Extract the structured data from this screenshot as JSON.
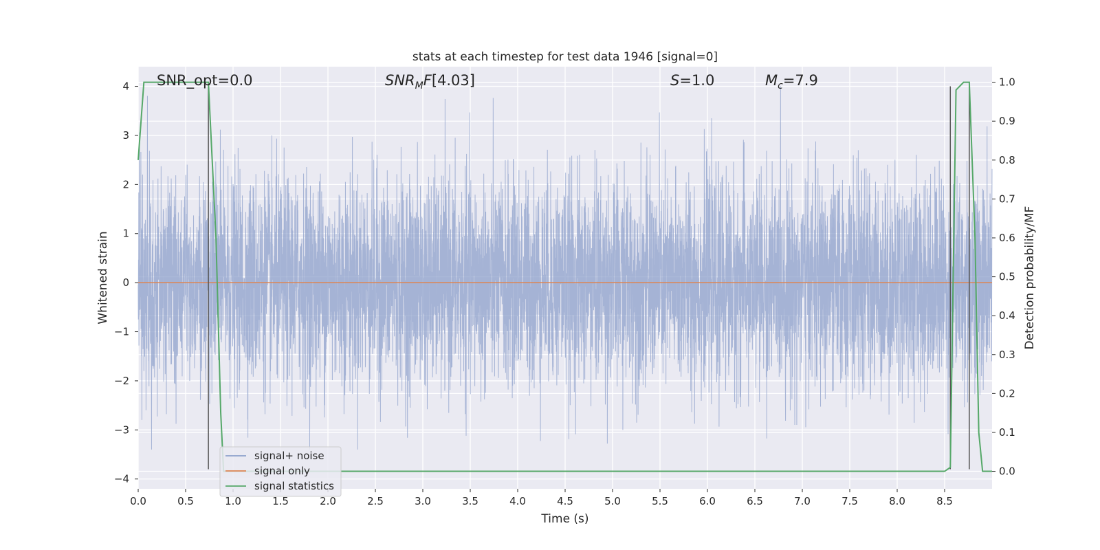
{
  "chart_data": {
    "type": "line",
    "title": "stats at each timestep for test data 1946 [signal=0]",
    "xlabel": "Time (s)",
    "ylabel": "Whitened strain",
    "ylabel_right": "Detection probability/MF",
    "xlim": [
      0.0,
      9.0
    ],
    "ylim": [
      -4.2,
      4.4
    ],
    "ylim_right": [
      -0.045,
      1.04
    ],
    "x_ticks": [
      "0.0",
      "0.5",
      "1.0",
      "1.5",
      "2.0",
      "2.5",
      "3.0",
      "3.5",
      "4.0",
      "4.5",
      "5.0",
      "5.5",
      "6.0",
      "6.5",
      "7.0",
      "7.5",
      "8.0",
      "8.5"
    ],
    "y_ticks": [
      "4",
      "3",
      "2",
      "1",
      "0",
      "−1",
      "−2",
      "−3",
      "−4"
    ],
    "y_ticks_right": [
      "1.0",
      "0.9",
      "0.8",
      "0.7",
      "0.6",
      "0.5",
      "0.4",
      "0.3",
      "0.2",
      "0.1",
      "0.0"
    ],
    "grid": true,
    "legend_position": "bottom-left",
    "annotations": {
      "snr_opt": "SNR_opt=0.0",
      "snr_mf": "[4.03]",
      "s": "=1.0",
      "mc": "=7.9"
    },
    "series": [
      {
        "name": "signal+ noise",
        "color": "#8da0cb",
        "description": "whitened strain noise, approx. gaussian with unit variance, peaks reaching about +4 and -3.4",
        "envelope": {
          "max": 4.0,
          "min": -3.4
        }
      },
      {
        "name": "signal only",
        "color": "#dd8452",
        "x": [
          0.0,
          9.0
        ],
        "y": [
          0.0,
          0.0
        ]
      },
      {
        "name": "signal statistics",
        "color": "#55a868",
        "axis": "right",
        "x": [
          0.0,
          0.06,
          0.12,
          0.2,
          0.6,
          0.74,
          0.82,
          0.87,
          0.9,
          1.0,
          8.2,
          8.5,
          8.56,
          8.62,
          8.7,
          8.76,
          8.82,
          8.86,
          8.9,
          9.0
        ],
        "y": [
          0.8,
          1.0,
          1.0,
          1.0,
          1.0,
          1.0,
          0.6,
          0.15,
          0.0,
          0.0,
          0.0,
          0.0,
          0.01,
          0.98,
          1.0,
          1.0,
          0.6,
          0.1,
          0.0,
          0.0
        ]
      }
    ],
    "vlines": [
      {
        "x": 0.74,
        "ymin": -3.8,
        "ymax": 4.0,
        "color": "#555555"
      },
      {
        "x": 8.56,
        "ymin": -3.8,
        "ymax": 4.0,
        "color": "#555555"
      },
      {
        "x": 8.76,
        "ymin": -3.8,
        "ymax": 4.0,
        "color": "#555555"
      }
    ]
  }
}
